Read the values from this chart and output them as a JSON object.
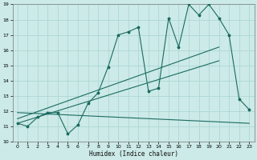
{
  "xlabel": "Humidex (Indice chaleur)",
  "bg_color": "#cceae7",
  "grid_color": "#aed8d4",
  "line_color": "#1a6b60",
  "xlim": [
    -0.5,
    23.5
  ],
  "ylim": [
    10,
    19
  ],
  "yticks": [
    10,
    11,
    12,
    13,
    14,
    15,
    16,
    17,
    18,
    19
  ],
  "xticks": [
    0,
    1,
    2,
    3,
    4,
    5,
    6,
    7,
    8,
    9,
    10,
    11,
    12,
    13,
    14,
    15,
    16,
    17,
    18,
    19,
    20,
    21,
    22,
    23
  ],
  "line1_x": [
    0,
    1,
    2,
    3,
    4,
    5,
    6,
    7,
    8,
    9,
    10,
    11,
    12,
    13,
    14,
    15,
    16,
    17,
    18,
    19,
    20,
    21,
    22,
    23
  ],
  "line1_y": [
    11.2,
    11.0,
    11.6,
    11.9,
    11.9,
    10.5,
    11.1,
    12.5,
    13.2,
    14.9,
    17.0,
    17.2,
    17.5,
    13.3,
    13.5,
    18.1,
    16.2,
    19.0,
    18.3,
    19.0,
    18.1,
    17.0,
    12.8,
    12.1
  ],
  "line2_x": [
    0,
    20
  ],
  "line2_y": [
    11.2,
    15.3
  ],
  "line3_x": [
    0,
    20
  ],
  "line3_y": [
    11.5,
    16.2
  ],
  "line4_x": [
    0,
    23
  ],
  "line4_y": [
    11.9,
    11.2
  ]
}
